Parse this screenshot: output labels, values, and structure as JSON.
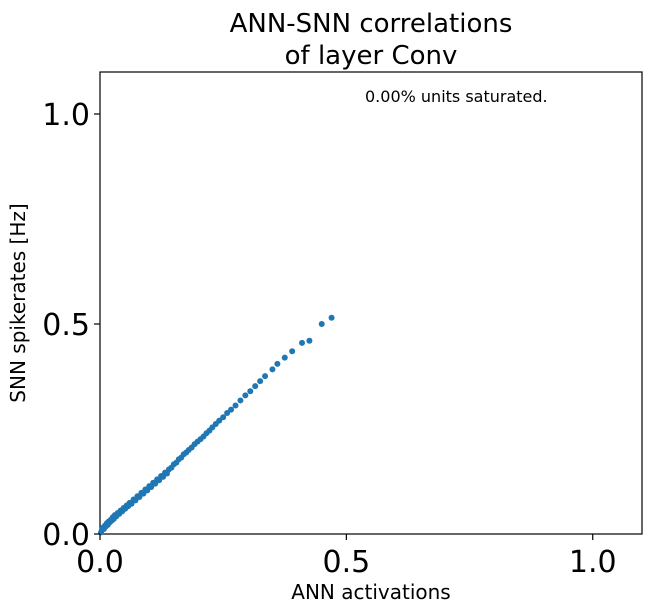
{
  "chart_data": {
    "type": "scatter",
    "title_line1": "ANN-SNN correlations",
    "title_line2": "of layer Conv",
    "xlabel": "ANN activations",
    "ylabel": "SNN spikerates [Hz]",
    "annotation": "0.00% units saturated.",
    "xlim": [
      0,
      1.1
    ],
    "ylim": [
      0,
      1.1
    ],
    "xticks": [
      0.0,
      0.5,
      1.0
    ],
    "yticks": [
      0.0,
      0.5,
      1.0
    ],
    "xtick_labels": [
      "0.0",
      "0.5",
      "1.0"
    ],
    "ytick_labels": [
      "0.0",
      "0.5",
      "1.0"
    ],
    "grid": false,
    "marker_color": "#1f77b4",
    "series": [
      {
        "points": [
          [
            0.002,
            0.004
          ],
          [
            0.004,
            0.01
          ],
          [
            0.006,
            0.015
          ],
          [
            0.008,
            0.012
          ],
          [
            0.01,
            0.02
          ],
          [
            0.012,
            0.018
          ],
          [
            0.014,
            0.026
          ],
          [
            0.016,
            0.022
          ],
          [
            0.018,
            0.03
          ],
          [
            0.02,
            0.028
          ],
          [
            0.022,
            0.034
          ],
          [
            0.024,
            0.032
          ],
          [
            0.026,
            0.04
          ],
          [
            0.028,
            0.036
          ],
          [
            0.03,
            0.045
          ],
          [
            0.033,
            0.042
          ],
          [
            0.036,
            0.05
          ],
          [
            0.039,
            0.048
          ],
          [
            0.042,
            0.056
          ],
          [
            0.045,
            0.054
          ],
          [
            0.048,
            0.062
          ],
          [
            0.051,
            0.06
          ],
          [
            0.054,
            0.068
          ],
          [
            0.057,
            0.066
          ],
          [
            0.06,
            0.074
          ],
          [
            0.064,
            0.072
          ],
          [
            0.068,
            0.082
          ],
          [
            0.072,
            0.08
          ],
          [
            0.076,
            0.09
          ],
          [
            0.08,
            0.088
          ],
          [
            0.084,
            0.098
          ],
          [
            0.088,
            0.096
          ],
          [
            0.092,
            0.106
          ],
          [
            0.096,
            0.104
          ],
          [
            0.1,
            0.114
          ],
          [
            0.104,
            0.112
          ],
          [
            0.108,
            0.122
          ],
          [
            0.112,
            0.12
          ],
          [
            0.116,
            0.13
          ],
          [
            0.12,
            0.128
          ],
          [
            0.124,
            0.138
          ],
          [
            0.128,
            0.136
          ],
          [
            0.132,
            0.146
          ],
          [
            0.136,
            0.144
          ],
          [
            0.14,
            0.154
          ],
          [
            0.145,
            0.158
          ],
          [
            0.15,
            0.166
          ],
          [
            0.155,
            0.17
          ],
          [
            0.16,
            0.178
          ],
          [
            0.165,
            0.182
          ],
          [
            0.17,
            0.19
          ],
          [
            0.175,
            0.194
          ],
          [
            0.18,
            0.2
          ],
          [
            0.186,
            0.206
          ],
          [
            0.192,
            0.214
          ],
          [
            0.198,
            0.22
          ],
          [
            0.204,
            0.226
          ],
          [
            0.21,
            0.232
          ],
          [
            0.216,
            0.24
          ],
          [
            0.222,
            0.246
          ],
          [
            0.228,
            0.254
          ],
          [
            0.235,
            0.262
          ],
          [
            0.242,
            0.27
          ],
          [
            0.25,
            0.278
          ],
          [
            0.258,
            0.288
          ],
          [
            0.266,
            0.296
          ],
          [
            0.275,
            0.306
          ],
          [
            0.285,
            0.318
          ],
          [
            0.295,
            0.33
          ],
          [
            0.305,
            0.34
          ],
          [
            0.315,
            0.352
          ],
          [
            0.325,
            0.364
          ],
          [
            0.335,
            0.376
          ],
          [
            0.35,
            0.392
          ],
          [
            0.36,
            0.405
          ],
          [
            0.375,
            0.42
          ],
          [
            0.39,
            0.435
          ],
          [
            0.41,
            0.455
          ],
          [
            0.425,
            0.46
          ],
          [
            0.45,
            0.5
          ],
          [
            0.47,
            0.515
          ]
        ]
      }
    ]
  }
}
